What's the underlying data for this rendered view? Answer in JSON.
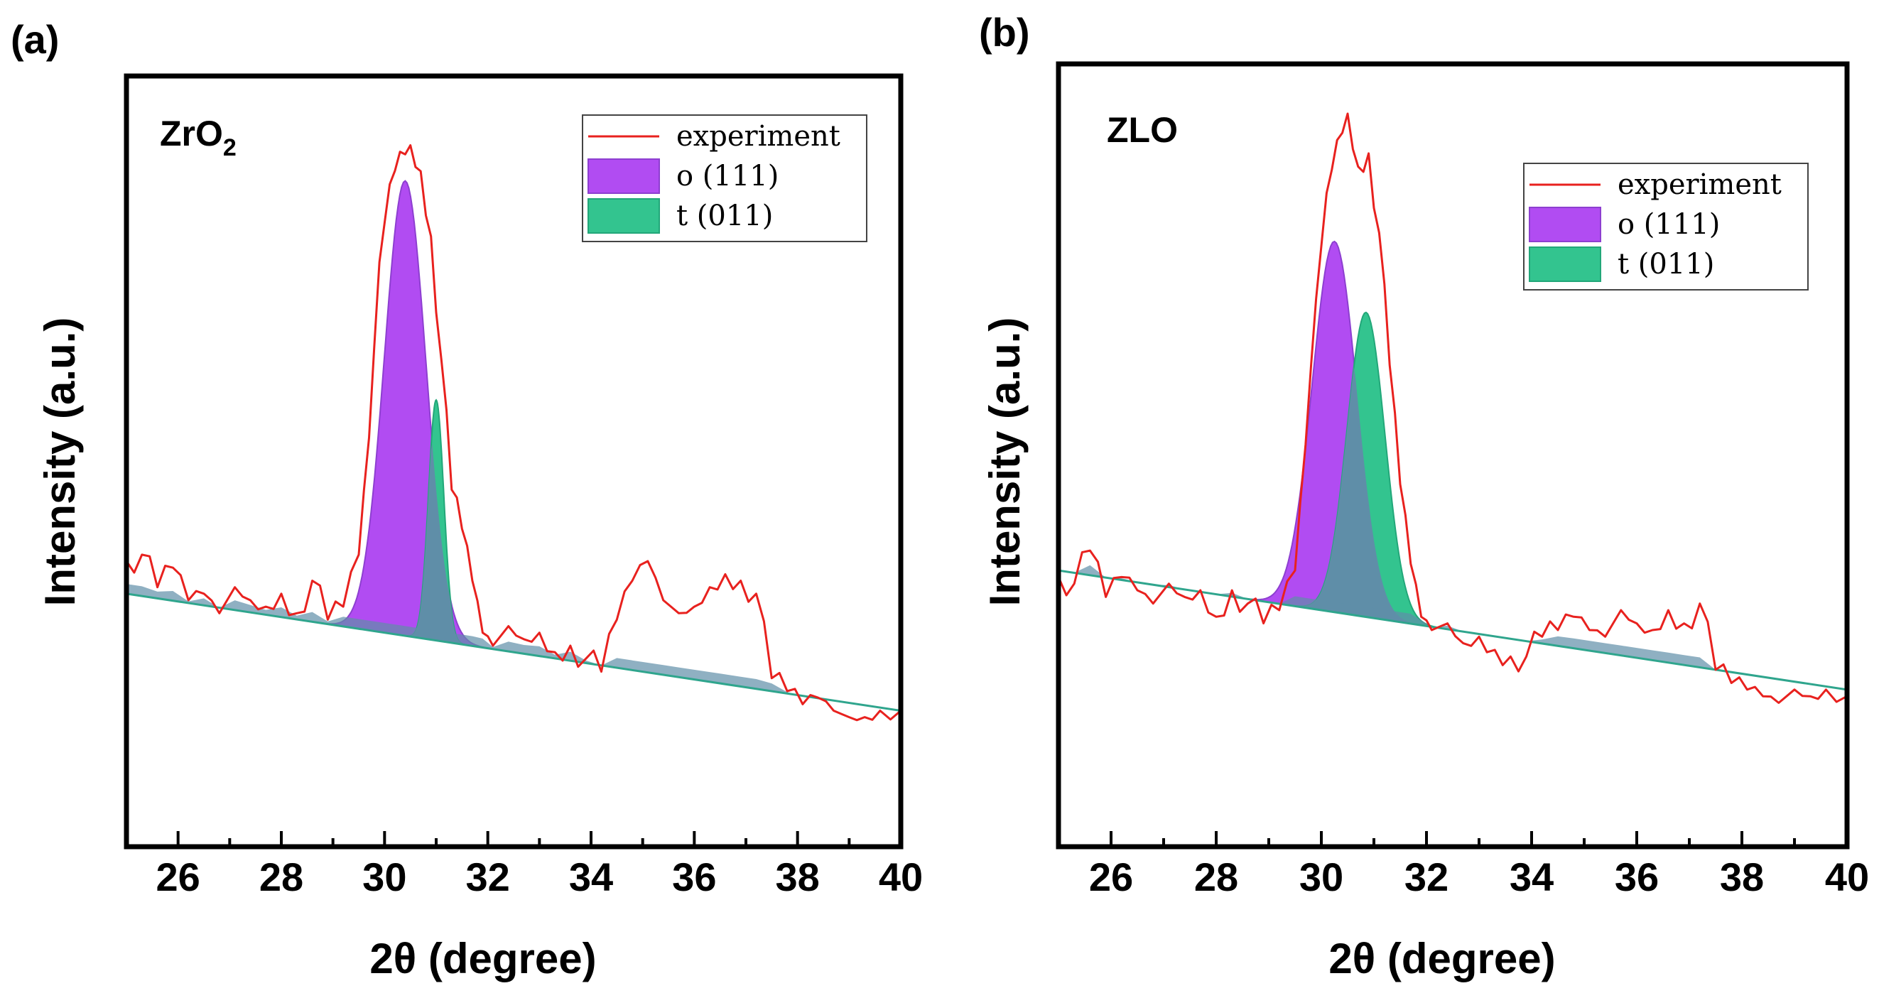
{
  "chart_data": [
    {
      "type": "area",
      "panel_label": "(a)",
      "sample_label": "ZrO",
      "sample_label_sub": "2",
      "xlabel": "2θ (degree)",
      "ylabel": "Intensity (a.u.)",
      "xlim": [
        25,
        40
      ],
      "ylim": [
        0,
        100
      ],
      "xticks": [
        "26",
        "28",
        "30",
        "32",
        "34",
        "36",
        "38",
        "40"
      ],
      "legend": {
        "placement": "top-right",
        "entries": [
          "experiment",
          "o (111)",
          "t (011)"
        ]
      },
      "colors": {
        "experiment": "#e8211e",
        "o111": "#b14cf2",
        "t011": "#33c48f",
        "overlap": "#5f8ea8",
        "baseline": "#2fa58d"
      },
      "baseline": {
        "x": [
          25,
          40
        ],
        "y": [
          28,
          10
        ]
      },
      "series": [
        {
          "name": "experiment",
          "x": [
            25.0,
            25.3,
            25.6,
            25.9,
            26.2,
            26.5,
            26.8,
            27.1,
            27.4,
            27.7,
            28.0,
            28.3,
            28.6,
            28.9,
            29.2,
            29.5,
            29.7,
            29.9,
            30.1,
            30.3,
            30.5,
            30.7,
            30.9,
            31.1,
            31.3,
            31.5,
            31.7,
            31.9,
            32.1,
            32.4,
            32.7,
            33.0,
            33.3,
            33.6,
            33.9,
            34.2,
            34.5,
            34.8,
            35.1,
            35.4,
            35.7,
            36.0,
            36.3,
            36.6,
            36.9,
            37.2,
            37.5,
            37.8,
            38.1,
            38.4,
            38.7,
            39.0,
            39.3,
            39.6,
            40.0
          ],
          "y": [
            33,
            34,
            29,
            32,
            27,
            28,
            25,
            29,
            27,
            26,
            28,
            25,
            30,
            24,
            26,
            34,
            52,
            79,
            91,
            96,
            97,
            93,
            83,
            64,
            44,
            38,
            30,
            22,
            20,
            23,
            21,
            22,
            19,
            20,
            18,
            16,
            24,
            30,
            33,
            27,
            25,
            26,
            29,
            31,
            30,
            28,
            15,
            13,
            11,
            12,
            10,
            9,
            9,
            10,
            10
          ]
        },
        {
          "name": "o (111)",
          "center": 30.4,
          "fwhm": 0.95,
          "height": 70
        },
        {
          "name": "t (011)",
          "center": 31.0,
          "fwhm": 0.35,
          "height": 37
        }
      ]
    },
    {
      "type": "area",
      "panel_label": "(b)",
      "sample_label": "ZLO",
      "sample_label_sub": "",
      "xlabel": "2θ (degree)",
      "ylabel": "Intensity (a.u.)",
      "xlim": [
        25,
        40
      ],
      "ylim": [
        0,
        100
      ],
      "xticks": [
        "26",
        "28",
        "30",
        "32",
        "34",
        "36",
        "38",
        "40"
      ],
      "legend": {
        "placement": "top-right",
        "entries": [
          "experiment",
          "o (111)",
          "t (011)"
        ]
      },
      "colors": {
        "experiment": "#e8211e",
        "o111": "#b14cf2",
        "t011": "#33c48f",
        "overlap": "#5f8ea8",
        "baseline": "#2fa58d"
      },
      "baseline": {
        "x": [
          25,
          40
        ],
        "y": [
          31,
          13
        ]
      },
      "series": [
        {
          "name": "experiment",
          "x": [
            25.0,
            25.3,
            25.6,
            25.9,
            26.2,
            26.5,
            26.8,
            27.1,
            27.4,
            27.7,
            28.0,
            28.3,
            28.6,
            28.9,
            29.2,
            29.5,
            29.7,
            29.9,
            30.1,
            30.3,
            30.5,
            30.7,
            30.9,
            31.1,
            31.3,
            31.5,
            31.7,
            31.9,
            32.1,
            32.4,
            32.7,
            33.0,
            33.3,
            33.6,
            33.9,
            34.2,
            34.5,
            34.8,
            35.1,
            35.4,
            35.7,
            36.0,
            36.3,
            36.6,
            36.9,
            37.2,
            37.5,
            37.8,
            38.1,
            38.4,
            38.7,
            39.0,
            39.3,
            39.6,
            40.0
          ],
          "y": [
            30,
            29,
            34,
            27,
            30,
            28,
            26,
            29,
            27,
            28,
            24,
            28,
            26,
            23,
            25,
            31,
            50,
            72,
            88,
            96,
            100,
            92,
            94,
            82,
            62,
            44,
            32,
            24,
            22,
            23,
            20,
            21,
            19,
            18,
            18,
            21,
            22,
            24,
            22,
            21,
            25,
            23,
            22,
            25,
            23,
            26,
            16,
            14,
            13,
            12,
            11,
            13,
            12,
            13,
            12
          ]
        },
        {
          "name": "o (111)",
          "center": 30.25,
          "fwhm": 1.0,
          "height": 56
        },
        {
          "name": "t (011)",
          "center": 30.85,
          "fwhm": 0.85,
          "height": 46
        }
      ]
    }
  ]
}
